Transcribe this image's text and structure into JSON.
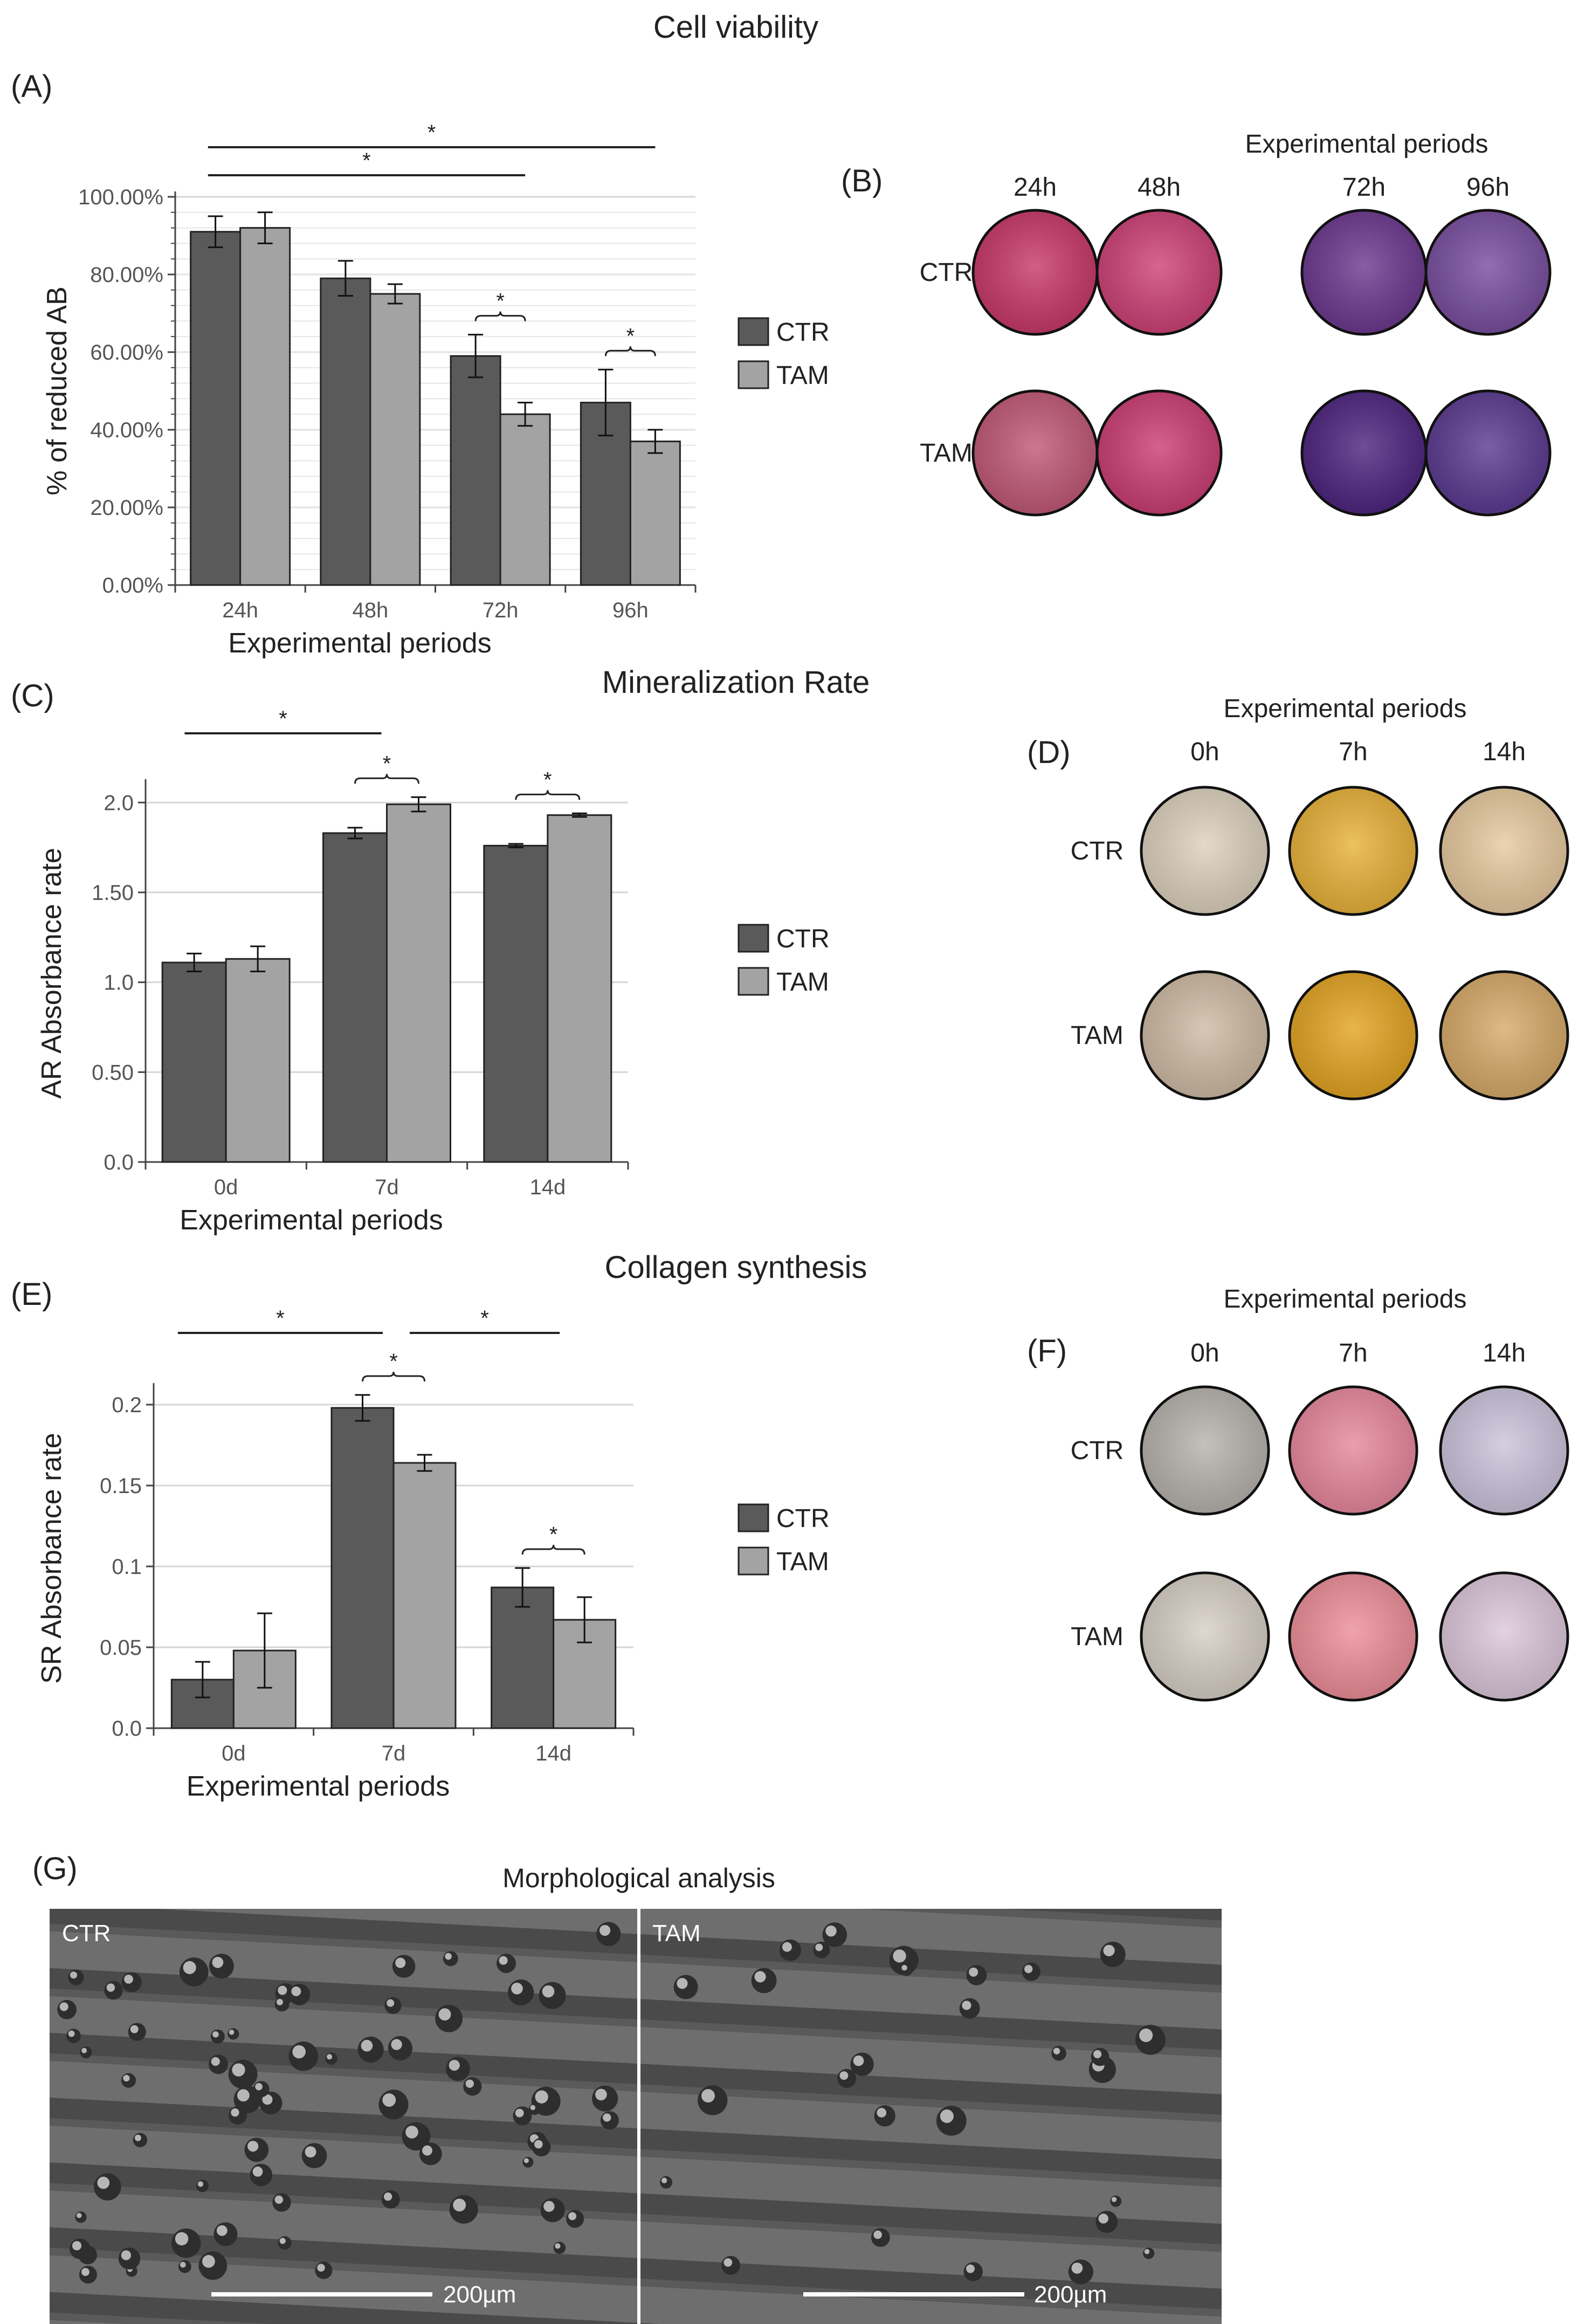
{
  "colors": {
    "ctr": "#5a5a5a",
    "tam": "#a3a3a3",
    "grid": "#d6d6d6",
    "text": "#222222"
  },
  "panel_labels": {
    "a": "(A)",
    "b": "(B)",
    "c": "(C)",
    "d": "(D)",
    "e": "(E)",
    "f": "(F)",
    "g": "(G)"
  },
  "chart_data": [
    {
      "id": "A",
      "type": "bar",
      "title": "Cell viability",
      "xlabel": "Experimental periods",
      "ylabel": "% of reduced AB",
      "categories": [
        "24h",
        "48h",
        "72h",
        "96h"
      ],
      "ylim": [
        0,
        100
      ],
      "yticks": [
        0,
        20,
        40,
        60,
        80,
        100
      ],
      "ytick_labels": [
        "0.00%",
        "20.00%",
        "40.00%",
        "60.00%",
        "80.00%",
        "100.00%"
      ],
      "grid": true,
      "legend_position": "right",
      "series": [
        {
          "name": "CTR",
          "values": [
            91,
            79,
            59,
            47
          ],
          "errors": [
            4,
            4.5,
            5.5,
            8.5
          ]
        },
        {
          "name": "TAM",
          "values": [
            92,
            75,
            44,
            37
          ],
          "errors": [
            4,
            2.5,
            3,
            3
          ]
        }
      ],
      "significance": [
        {
          "from": 0,
          "to": 3,
          "label": "*"
        },
        {
          "from": 0,
          "to": 2,
          "label": "*"
        },
        {
          "within": 2,
          "label": "*"
        },
        {
          "within": 3,
          "label": "*"
        }
      ]
    },
    {
      "id": "C",
      "type": "bar",
      "title": "Mineralization Rate",
      "xlabel": "Experimental periods",
      "ylabel": "AR Absorbance rate",
      "categories": [
        "0d",
        "7d",
        "14d"
      ],
      "ylim": [
        0,
        2.1
      ],
      "yticks": [
        0,
        0.5,
        1.0,
        1.5,
        2.0
      ],
      "ytick_labels": [
        "0.0",
        "0.50",
        "1.0",
        "1.50",
        "2.0"
      ],
      "grid": true,
      "legend_position": "right",
      "series": [
        {
          "name": "CTR",
          "values": [
            1.11,
            1.83,
            1.76
          ],
          "errors": [
            0.05,
            0.03,
            0.01
          ]
        },
        {
          "name": "TAM",
          "values": [
            1.13,
            1.99,
            1.93
          ],
          "errors": [
            0.07,
            0.04,
            0.01
          ]
        }
      ],
      "significance": [
        {
          "from": 0,
          "to": 1,
          "label": "*"
        },
        {
          "within": 1,
          "label": "*"
        },
        {
          "within": 2,
          "label": "*"
        }
      ]
    },
    {
      "id": "E",
      "type": "bar",
      "title": "Collagen synthesis",
      "xlabel": "Experimental periods",
      "ylabel": "SR Absorbance rate",
      "categories": [
        "0d",
        "7d",
        "14d"
      ],
      "ylim": [
        0,
        0.21
      ],
      "yticks": [
        0,
        0.05,
        0.1,
        0.15,
        0.2
      ],
      "ytick_labels": [
        "0.0",
        "0.05",
        "0.1",
        "0.15",
        "0.2"
      ],
      "grid": true,
      "legend_position": "right",
      "series": [
        {
          "name": "CTR",
          "values": [
            0.03,
            0.198,
            0.087
          ],
          "errors": [
            0.011,
            0.008,
            0.012
          ]
        },
        {
          "name": "TAM",
          "values": [
            0.048,
            0.164,
            0.067
          ],
          "errors": [
            0.023,
            0.005,
            0.014
          ]
        }
      ],
      "significance": [
        {
          "from": 0,
          "to": 1,
          "label": "*"
        },
        {
          "from": 1,
          "to": 2,
          "label": "*"
        },
        {
          "within": 1,
          "label": "*"
        },
        {
          "within": 2,
          "label": "*"
        }
      ]
    }
  ],
  "panel_b": {
    "heading": "Experimental periods",
    "columns": [
      "24h",
      "48h",
      "72h",
      "96h"
    ],
    "rows": [
      "CTR",
      "TAM"
    ],
    "colors": [
      [
        "#c93a6a",
        "#cf4378",
        "#6e3a90",
        "#7a4fa0"
      ],
      [
        "#c25a78",
        "#cc3f75",
        "#4f2680",
        "#5c3c92"
      ]
    ]
  },
  "panel_d": {
    "heading": "Experimental periods",
    "columns": [
      "0h",
      "7h",
      "14h"
    ],
    "rows": [
      "CTR",
      "TAM"
    ],
    "colors": [
      [
        "#ddd2bf",
        "#e9b33c",
        "#e8caa0"
      ],
      [
        "#cfbca5",
        "#e4a524",
        "#d8ab6a"
      ]
    ]
  },
  "panel_f": {
    "heading": "Experimental periods",
    "columns": [
      "0h",
      "7h",
      "14h"
    ],
    "rows": [
      "CTR",
      "TAM"
    ],
    "colors": [
      [
        "#b8b3ad",
        "#e8899e",
        "#cdc4dc"
      ],
      [
        "#d8d0c6",
        "#ee8f9a",
        "#ddc8dc"
      ]
    ]
  },
  "panel_g": {
    "title": "Morphological analysis",
    "images": [
      {
        "label": "CTR",
        "scale": "200µm"
      },
      {
        "label": "TAM",
        "scale": "200µm"
      }
    ]
  }
}
